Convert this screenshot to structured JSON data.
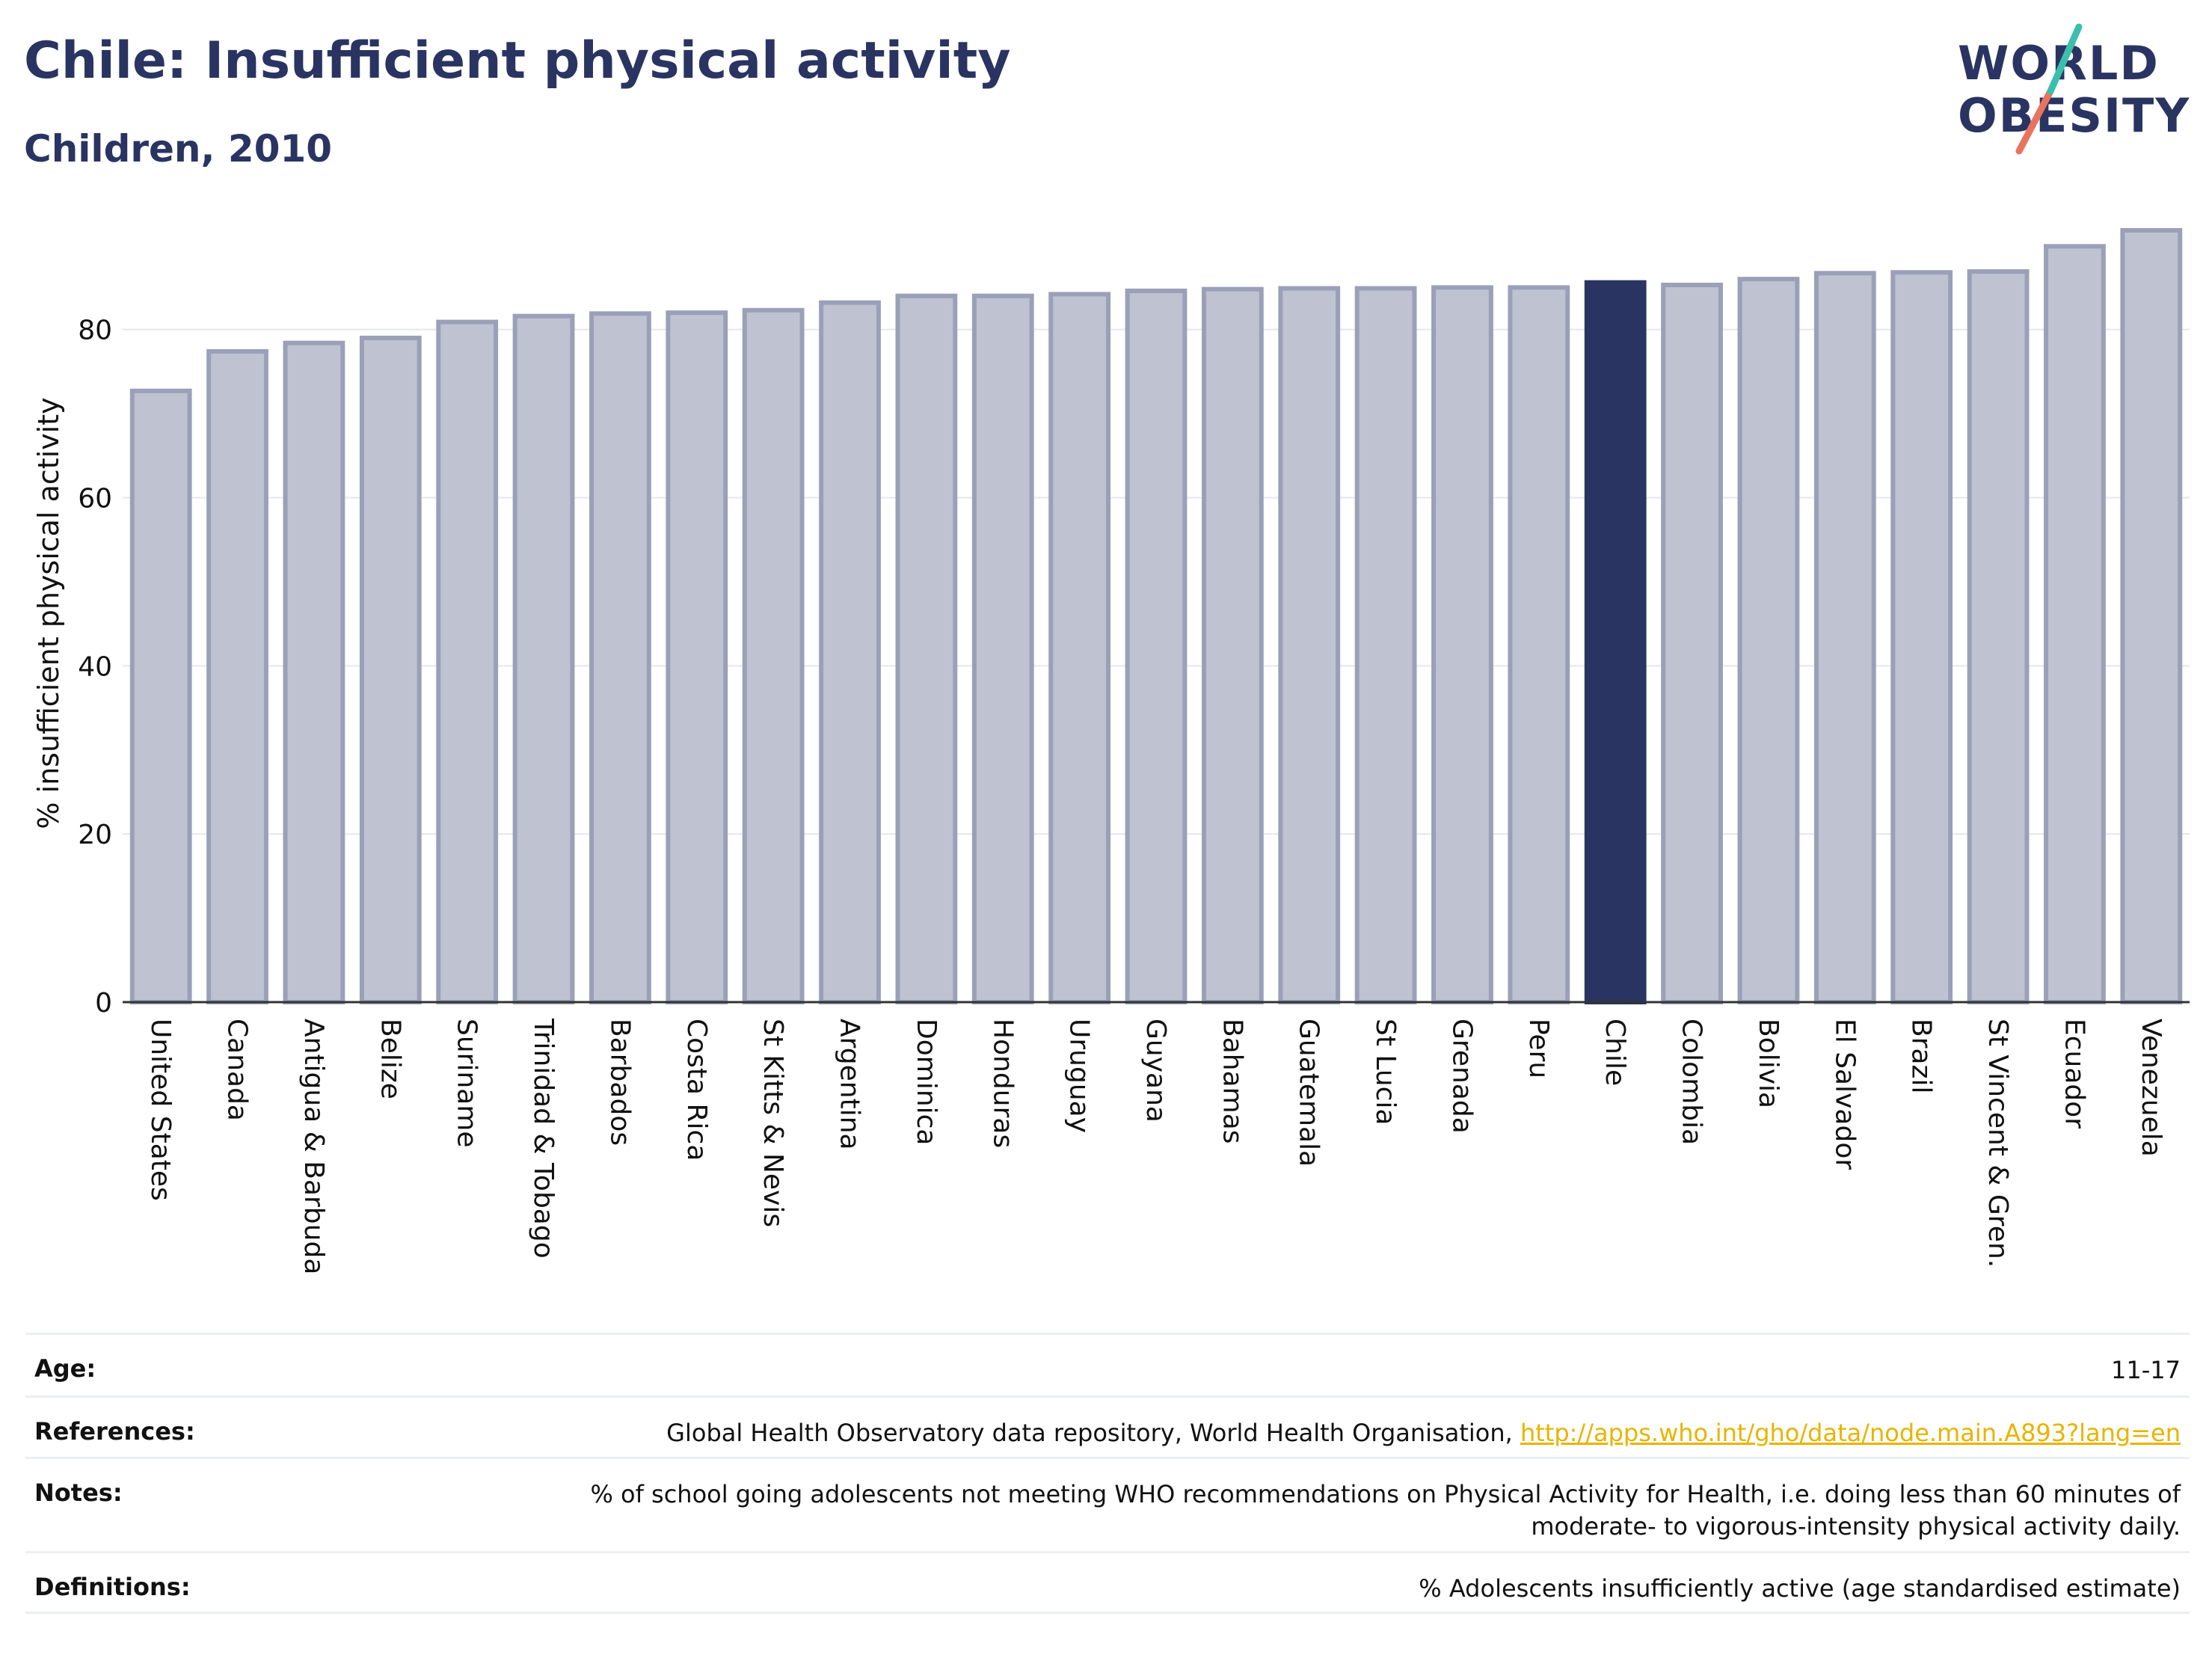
{
  "header": {
    "title": "Chile: Insufficient physical activity",
    "subtitle": "Children, 2010"
  },
  "logo": {
    "line1": "WORLD",
    "line2": "OBESITY"
  },
  "colors": {
    "highlight": "#2a3462",
    "bar_fill": "#bfc2d0",
    "bar_stroke": "#9aa0b8",
    "logo_teal": "#3bbfad",
    "logo_coral": "#e8735f"
  },
  "chart_data": {
    "type": "bar",
    "ylabel": "% insufficient physical activity",
    "ylim": [
      0,
      95
    ],
    "yticks": [
      0,
      20,
      40,
      60,
      80
    ],
    "grid": true,
    "highlight": "Chile",
    "categories": [
      "United States",
      "Canada",
      "Antigua & Barbuda",
      "Belize",
      "Suriname",
      "Trinidad & Tobago",
      "Barbados",
      "Costa Rica",
      "St Kitts & Nevis",
      "Argentina",
      "Dominica",
      "Honduras",
      "Uruguay",
      "Guyana",
      "Bahamas",
      "Guatemala",
      "St Lucia",
      "Grenada",
      "Peru",
      "Chile",
      "Colombia",
      "Bolivia",
      "El Salvador",
      "Brazil",
      "St Vincent & Gren.",
      "Ecuador",
      "Venezuela"
    ],
    "values": [
      72.7,
      77.4,
      78.4,
      79.0,
      80.9,
      81.6,
      81.9,
      82.0,
      82.3,
      83.2,
      84.0,
      84.0,
      84.2,
      84.6,
      84.8,
      84.9,
      84.9,
      85.0,
      85.0,
      85.6,
      85.3,
      86.0,
      86.7,
      86.8,
      86.9,
      89.9,
      91.8
    ]
  },
  "footer": {
    "age": {
      "label": "Age:",
      "value": "11-17"
    },
    "references": {
      "label": "References:",
      "text": "Global Health Observatory data repository, World Health Organisation, ",
      "link": "http://apps.who.int/gho/data/node.main.A893?lang=en"
    },
    "notes": {
      "label": "Notes:",
      "line1": "% of school going adolescents not meeting WHO recommendations on Physical Activity for Health, i.e. doing less than 60 minutes of",
      "line2": "moderate- to vigorous-intensity physical activity daily."
    },
    "definitions": {
      "label": "Definitions:",
      "value": "% Adolescents insufficiently active (age standardised estimate)"
    }
  }
}
